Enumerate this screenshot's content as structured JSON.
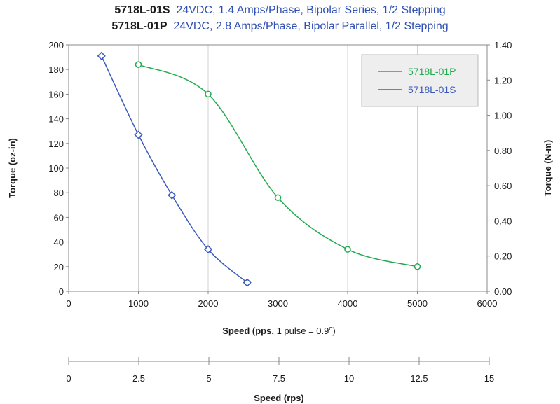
{
  "chart_data": {
    "type": "line",
    "titles": [
      {
        "model": "5718L-01S",
        "desc": "24VDC, 1.4 Amps/Phase, Bipolar Series, 1/2 Stepping"
      },
      {
        "model": "5718L-01P",
        "desc": "24VDC, 2.8 Amps/Phase, Bipolar Parallel, 1/2 Stepping"
      }
    ],
    "xlabel_bold": "Speed (pps,",
    "xlabel_rest": " 1 pulse = 0.9",
    "xlabel_sup": "o",
    "xlabel_close": ")",
    "ylabel_left": "Torque (oz-in)",
    "ylabel_right": "Torque (N-m)",
    "x2label": "Speed (rps)",
    "xlim": [
      0,
      6000
    ],
    "ylim": [
      0,
      200
    ],
    "y2lim": [
      0,
      1.4
    ],
    "x2lim": [
      0,
      15
    ],
    "x_ticks": [
      "0",
      "1000",
      "2000",
      "3000",
      "4000",
      "5000",
      "6000"
    ],
    "y_ticks": [
      "0",
      "20",
      "40",
      "60",
      "80",
      "100",
      "120",
      "140",
      "160",
      "180",
      "200"
    ],
    "y2_ticks": [
      "0.00",
      "0.20",
      "0.40",
      "0.60",
      "0.80",
      "1.00",
      "1.20",
      "1.40"
    ],
    "x2_ticks": [
      "0",
      "2.5",
      "5",
      "7.5",
      "10",
      "12.5",
      "15"
    ],
    "legend_position": "top-right",
    "series": [
      {
        "name": "5718L-01P",
        "color": "#22aa4e",
        "marker": "circle",
        "x": [
          1000,
          2000,
          3000,
          4000,
          5000
        ],
        "y": [
          184,
          160,
          76,
          34,
          20
        ]
      },
      {
        "name": "5718L-01S",
        "color": "#3a5bbd",
        "marker": "diamond",
        "x": [
          470,
          1000,
          1480,
          2000,
          2560
        ],
        "y": [
          191,
          127,
          78,
          34,
          7
        ]
      }
    ]
  }
}
